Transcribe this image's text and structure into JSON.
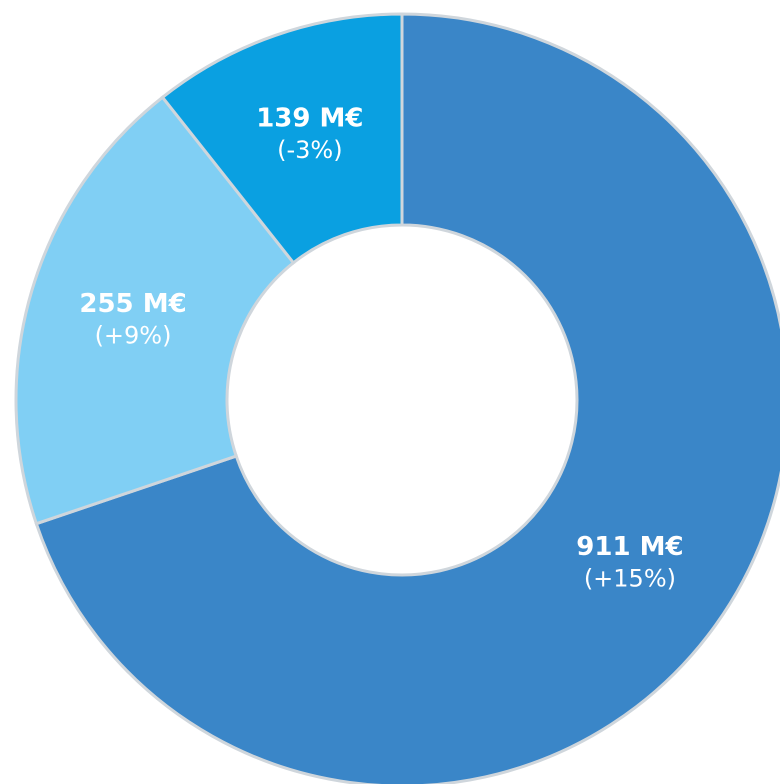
{
  "chart_data": {
    "type": "donut",
    "categories": [
      null,
      null,
      null
    ],
    "values": [
      911,
      255,
      139
    ],
    "value_labels": [
      "911 M€",
      "255 M€",
      "139 M€"
    ],
    "changes": [
      "(+15%)",
      "(+9%)",
      "(-3%)"
    ],
    "colors": [
      "#3a86c8",
      "#80cff4",
      "#0aa0e1"
    ]
  }
}
